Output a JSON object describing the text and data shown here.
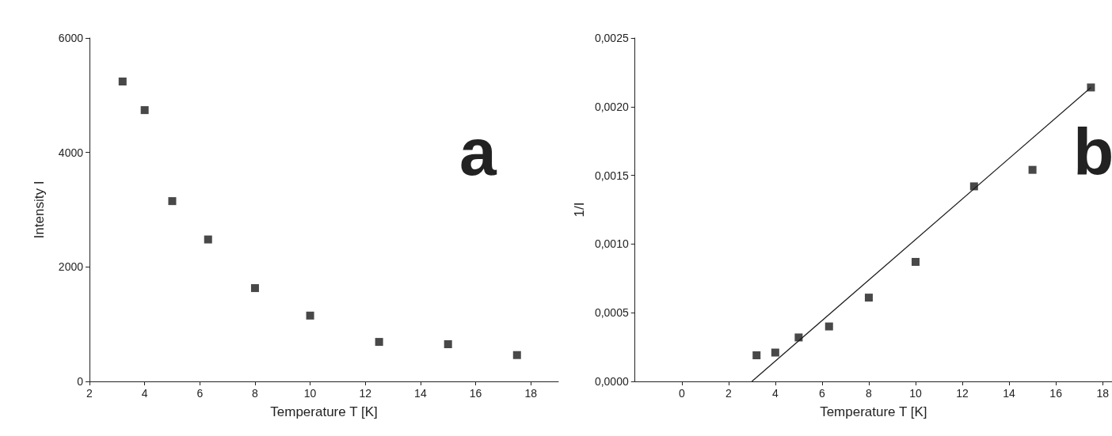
{
  "chart_data": [
    {
      "type": "scatter",
      "xlabel": "Temperature T [K]",
      "ylabel": "Intensity I",
      "annotations": [
        "a"
      ],
      "marker": "square",
      "x": [
        3.2,
        4,
        5,
        6.3,
        8,
        10,
        12.5,
        15,
        17.5
      ],
      "series": [
        {
          "color": "#1a1a1a",
          "values": [
            5240,
            4740,
            3150,
            2480,
            1630,
            1150,
            690,
            650,
            460
          ]
        }
      ],
      "xlim": [
        2,
        19
      ],
      "xticks": [
        2,
        4,
        6,
        8,
        10,
        12,
        14,
        16,
        18
      ],
      "ylim": [
        0,
        6000
      ],
      "yticks": [
        0,
        2000,
        4000,
        6000
      ],
      "grid": false
    },
    {
      "type": "scatter",
      "xlabel": "Temperature T [K]",
      "ylabel": "1/I",
      "annotations": [
        "b"
      ],
      "marker": "square",
      "x": [
        3.2,
        4,
        5,
        6.3,
        8,
        10,
        12.5,
        15,
        17.5
      ],
      "series": [
        {
          "color": "#1a1a1a",
          "values": [
            0.00019,
            0.00021,
            0.00032,
            0.0004,
            0.00061,
            0.00087,
            0.00142,
            0.00154,
            0.00214
          ]
        },
        {
          "type": "line",
          "marker": "none",
          "color": "#1a1a1a",
          "x": [
            3,
            17.5
          ],
          "values": [
            0,
            0.00214
          ]
        }
      ],
      "xlim": [
        -2,
        18.4
      ],
      "xticks": [
        0,
        2,
        4,
        6,
        8,
        10,
        12,
        14,
        16,
        18
      ],
      "ylim": [
        0,
        0.0025
      ],
      "yticks": [
        {
          "value": 0,
          "label": "0,0000"
        },
        {
          "value": 0.0005,
          "label": "0,0005"
        },
        {
          "value": 0.001,
          "label": "0,0010"
        },
        {
          "value": 0.0015,
          "label": "0,0015"
        },
        {
          "value": 0.002,
          "label": "0,0020"
        },
        {
          "value": 0.0025,
          "label": "0,0025"
        }
      ],
      "grid": false
    }
  ]
}
